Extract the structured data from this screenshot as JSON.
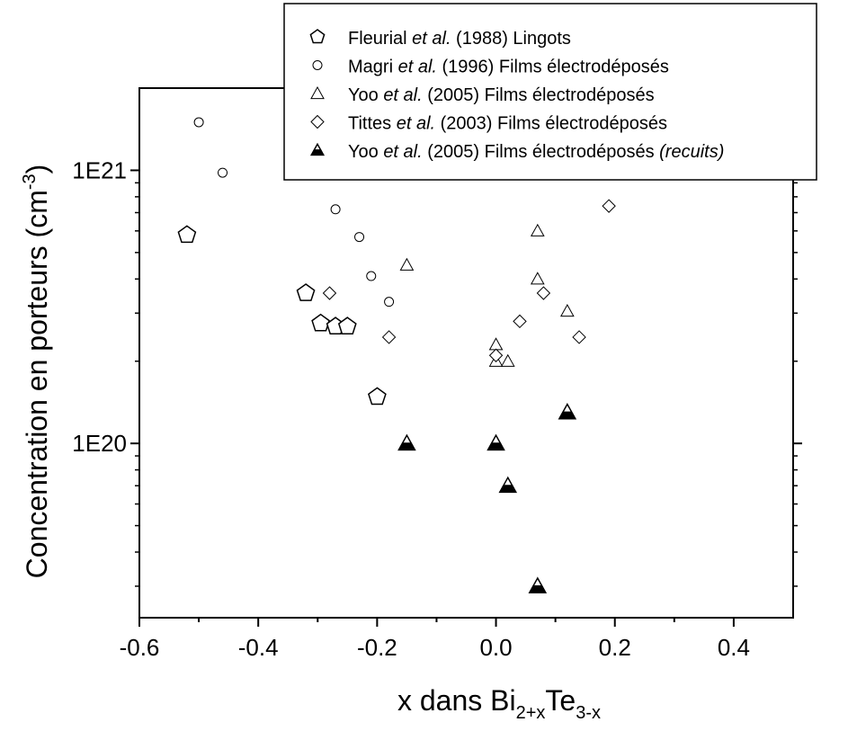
{
  "chart_data": {
    "type": "scatter",
    "xlabel": {
      "prefix": "x dans Bi",
      "sub1": "2+x",
      "mid": "Te",
      "sub2": "3-x"
    },
    "ylabel": {
      "main": "Concentration en porteurs (cm",
      "sup": "-3",
      "close": ")"
    },
    "xlim": [
      -0.6,
      0.5
    ],
    "ylim": [
      2.3e+19,
      2e+21
    ],
    "yscale": "log",
    "x_ticks": [
      -0.6,
      -0.4,
      -0.2,
      0.0,
      0.2,
      0.4
    ],
    "x_tick_labels": [
      "-0.6",
      "-0.4",
      "-0.2",
      "0.0",
      "0.2",
      "0.4"
    ],
    "y_ticks": [
      1e+20,
      1e+21
    ],
    "y_tick_labels": [
      "1E20",
      "1E21"
    ],
    "grid": false,
    "legend_position": "top-right",
    "series": [
      {
        "marker": "pentagon-open",
        "legend": [
          {
            "text": "Fleurial ",
            "style": "normal"
          },
          {
            "text": "et al.",
            "style": "italic"
          },
          {
            "text": " (1988) Lingots",
            "style": "normal"
          }
        ],
        "points": [
          [
            -0.52,
            5.8e+20
          ],
          [
            -0.32,
            3.55e+20
          ],
          [
            -0.295,
            2.75e+20
          ],
          [
            -0.27,
            2.68e+20
          ],
          [
            -0.25,
            2.68e+20
          ],
          [
            -0.2,
            1.48e+20
          ]
        ]
      },
      {
        "marker": "circle-open",
        "legend": [
          {
            "text": "Magri ",
            "style": "normal"
          },
          {
            "text": "et al.",
            "style": "italic"
          },
          {
            "text": " (1996) Films électrodéposés",
            "style": "normal"
          }
        ],
        "points": [
          [
            -0.5,
            1.5e+21
          ],
          [
            -0.46,
            9.8e+20
          ],
          [
            -0.27,
            7.2e+20
          ],
          [
            -0.23,
            5.7e+20
          ],
          [
            -0.21,
            4.1e+20
          ],
          [
            -0.18,
            3.3e+20
          ]
        ]
      },
      {
        "marker": "triangle-open",
        "legend": [
          {
            "text": "Yoo ",
            "style": "normal"
          },
          {
            "text": "et al.",
            "style": "italic"
          },
          {
            "text": " (2005) Films électrodéposés",
            "style": "normal"
          }
        ],
        "points": [
          [
            -0.15,
            4.5e+20
          ],
          [
            0.0,
            2.3e+20
          ],
          [
            0.0,
            2e+20
          ],
          [
            0.02,
            2e+20
          ],
          [
            0.07,
            6e+20
          ],
          [
            0.07,
            4e+20
          ],
          [
            0.12,
            3.05e+20
          ]
        ]
      },
      {
        "marker": "diamond-open",
        "legend": [
          {
            "text": "Tittes ",
            "style": "normal"
          },
          {
            "text": "et al.",
            "style": "italic"
          },
          {
            "text": " (2003) Films électrodéposés",
            "style": "normal"
          }
        ],
        "points": [
          [
            -0.28,
            3.55e+20
          ],
          [
            -0.18,
            2.45e+20
          ],
          [
            0.0,
            2.1e+20
          ],
          [
            0.04,
            2.8e+20
          ],
          [
            0.08,
            3.55e+20
          ],
          [
            0.14,
            2.45e+20
          ],
          [
            0.19,
            7.4e+20
          ]
        ]
      },
      {
        "marker": "triangle-half",
        "legend": [
          {
            "text": "Yoo ",
            "style": "normal"
          },
          {
            "text": "et al.",
            "style": "italic"
          },
          {
            "text": " (2005) Films électrodéposés ",
            "style": "normal"
          },
          {
            "text": "(recuits)",
            "style": "italic"
          }
        ],
        "points": [
          [
            -0.15,
            1e+20
          ],
          [
            0.0,
            1e+20
          ],
          [
            0.02,
            7e+19
          ],
          [
            0.07,
            3e+19
          ],
          [
            0.12,
            1.3e+20
          ]
        ]
      }
    ]
  }
}
